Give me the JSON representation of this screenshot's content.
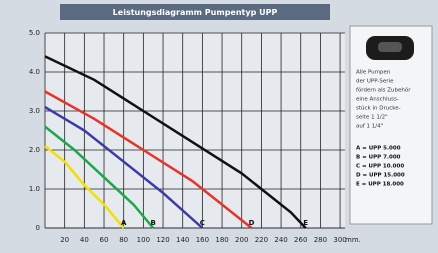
{
  "chart_data": {
    "type": "line",
    "title": "Leistungsdiagramm Pumpentyp UPP",
    "x_label": "mm.",
    "xlim": [
      0,
      305
    ],
    "ylim": [
      0,
      5
    ],
    "xticks": [
      20,
      40,
      60,
      80,
      100,
      120,
      140,
      160,
      180,
      200,
      220,
      240,
      260,
      280,
      300
    ],
    "yticks": [
      0,
      {
        "value": 1,
        "label": "1.0"
      },
      {
        "value": 2,
        "label": "2.0"
      },
      {
        "value": 3,
        "label": "3.0"
      },
      {
        "value": 4,
        "label": "4.0"
      },
      {
        "value": 5,
        "label": "5.0"
      }
    ],
    "grid": true,
    "series": [
      {
        "name": "A",
        "color": "#f2e000",
        "x": [
          0,
          20,
          40,
          60,
          80
        ],
        "values": [
          2.1,
          1.7,
          1.1,
          0.6,
          0
        ]
      },
      {
        "name": "B",
        "color": "#1aa84a",
        "x": [
          0,
          30,
          60,
          90,
          110
        ],
        "values": [
          2.6,
          2.0,
          1.3,
          0.6,
          0
        ]
      },
      {
        "name": "C",
        "color": "#3a3aa8",
        "x": [
          0,
          40,
          80,
          120,
          160
        ],
        "values": [
          3.1,
          2.5,
          1.7,
          0.9,
          0
        ]
      },
      {
        "name": "D",
        "color": "#e8322a",
        "x": [
          0,
          50,
          100,
          150,
          210
        ],
        "values": [
          3.5,
          2.8,
          2.0,
          1.2,
          0
        ]
      },
      {
        "name": "E",
        "color": "#111111",
        "x": [
          0,
          50,
          100,
          150,
          200,
          250,
          265
        ],
        "values": [
          4.4,
          3.8,
          3.0,
          2.2,
          1.4,
          0.4,
          0
        ]
      }
    ]
  },
  "side_panel": {
    "note": [
      "Alle Pumpen",
      "der UPP-Serie",
      "fördern als Zubehör",
      "eine Anschluss-",
      "stück in Drucke-",
      "seite 1 1/2\"",
      "auf 1 1/4\""
    ],
    "key": [
      "A = UPP 5.000",
      "B = UPP 7.000",
      "C = UPP 10.000",
      "D = UPP 15.000",
      "E = UPP 18.000"
    ]
  }
}
